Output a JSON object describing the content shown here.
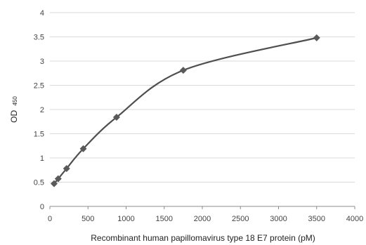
{
  "chart_data": {
    "type": "scatter",
    "xlabel": "Recombinant human papillomavirus type 18 E7 protein (pM)",
    "ylabel": "OD",
    "ylabel_subscript": "450",
    "xlim": [
      0,
      4000
    ],
    "ylim": [
      0,
      4
    ],
    "xticks": [
      "0",
      "500",
      "1000",
      "1500",
      "2000",
      "2500",
      "3000",
      "3500",
      "4000"
    ],
    "yticks": [
      "0",
      "0.5",
      "1",
      "1.5",
      "2",
      "2.5",
      "3",
      "3.5",
      "4"
    ],
    "grid": "horizontal",
    "series": [
      {
        "x": [
          55,
          109,
          219,
          438,
          875,
          1750,
          3500
        ],
        "y": [
          0.47,
          0.57,
          0.78,
          1.19,
          1.84,
          2.81,
          3.48
        ],
        "marker": "diamond",
        "line": "smooth",
        "color": "#4f4f4f"
      }
    ]
  }
}
